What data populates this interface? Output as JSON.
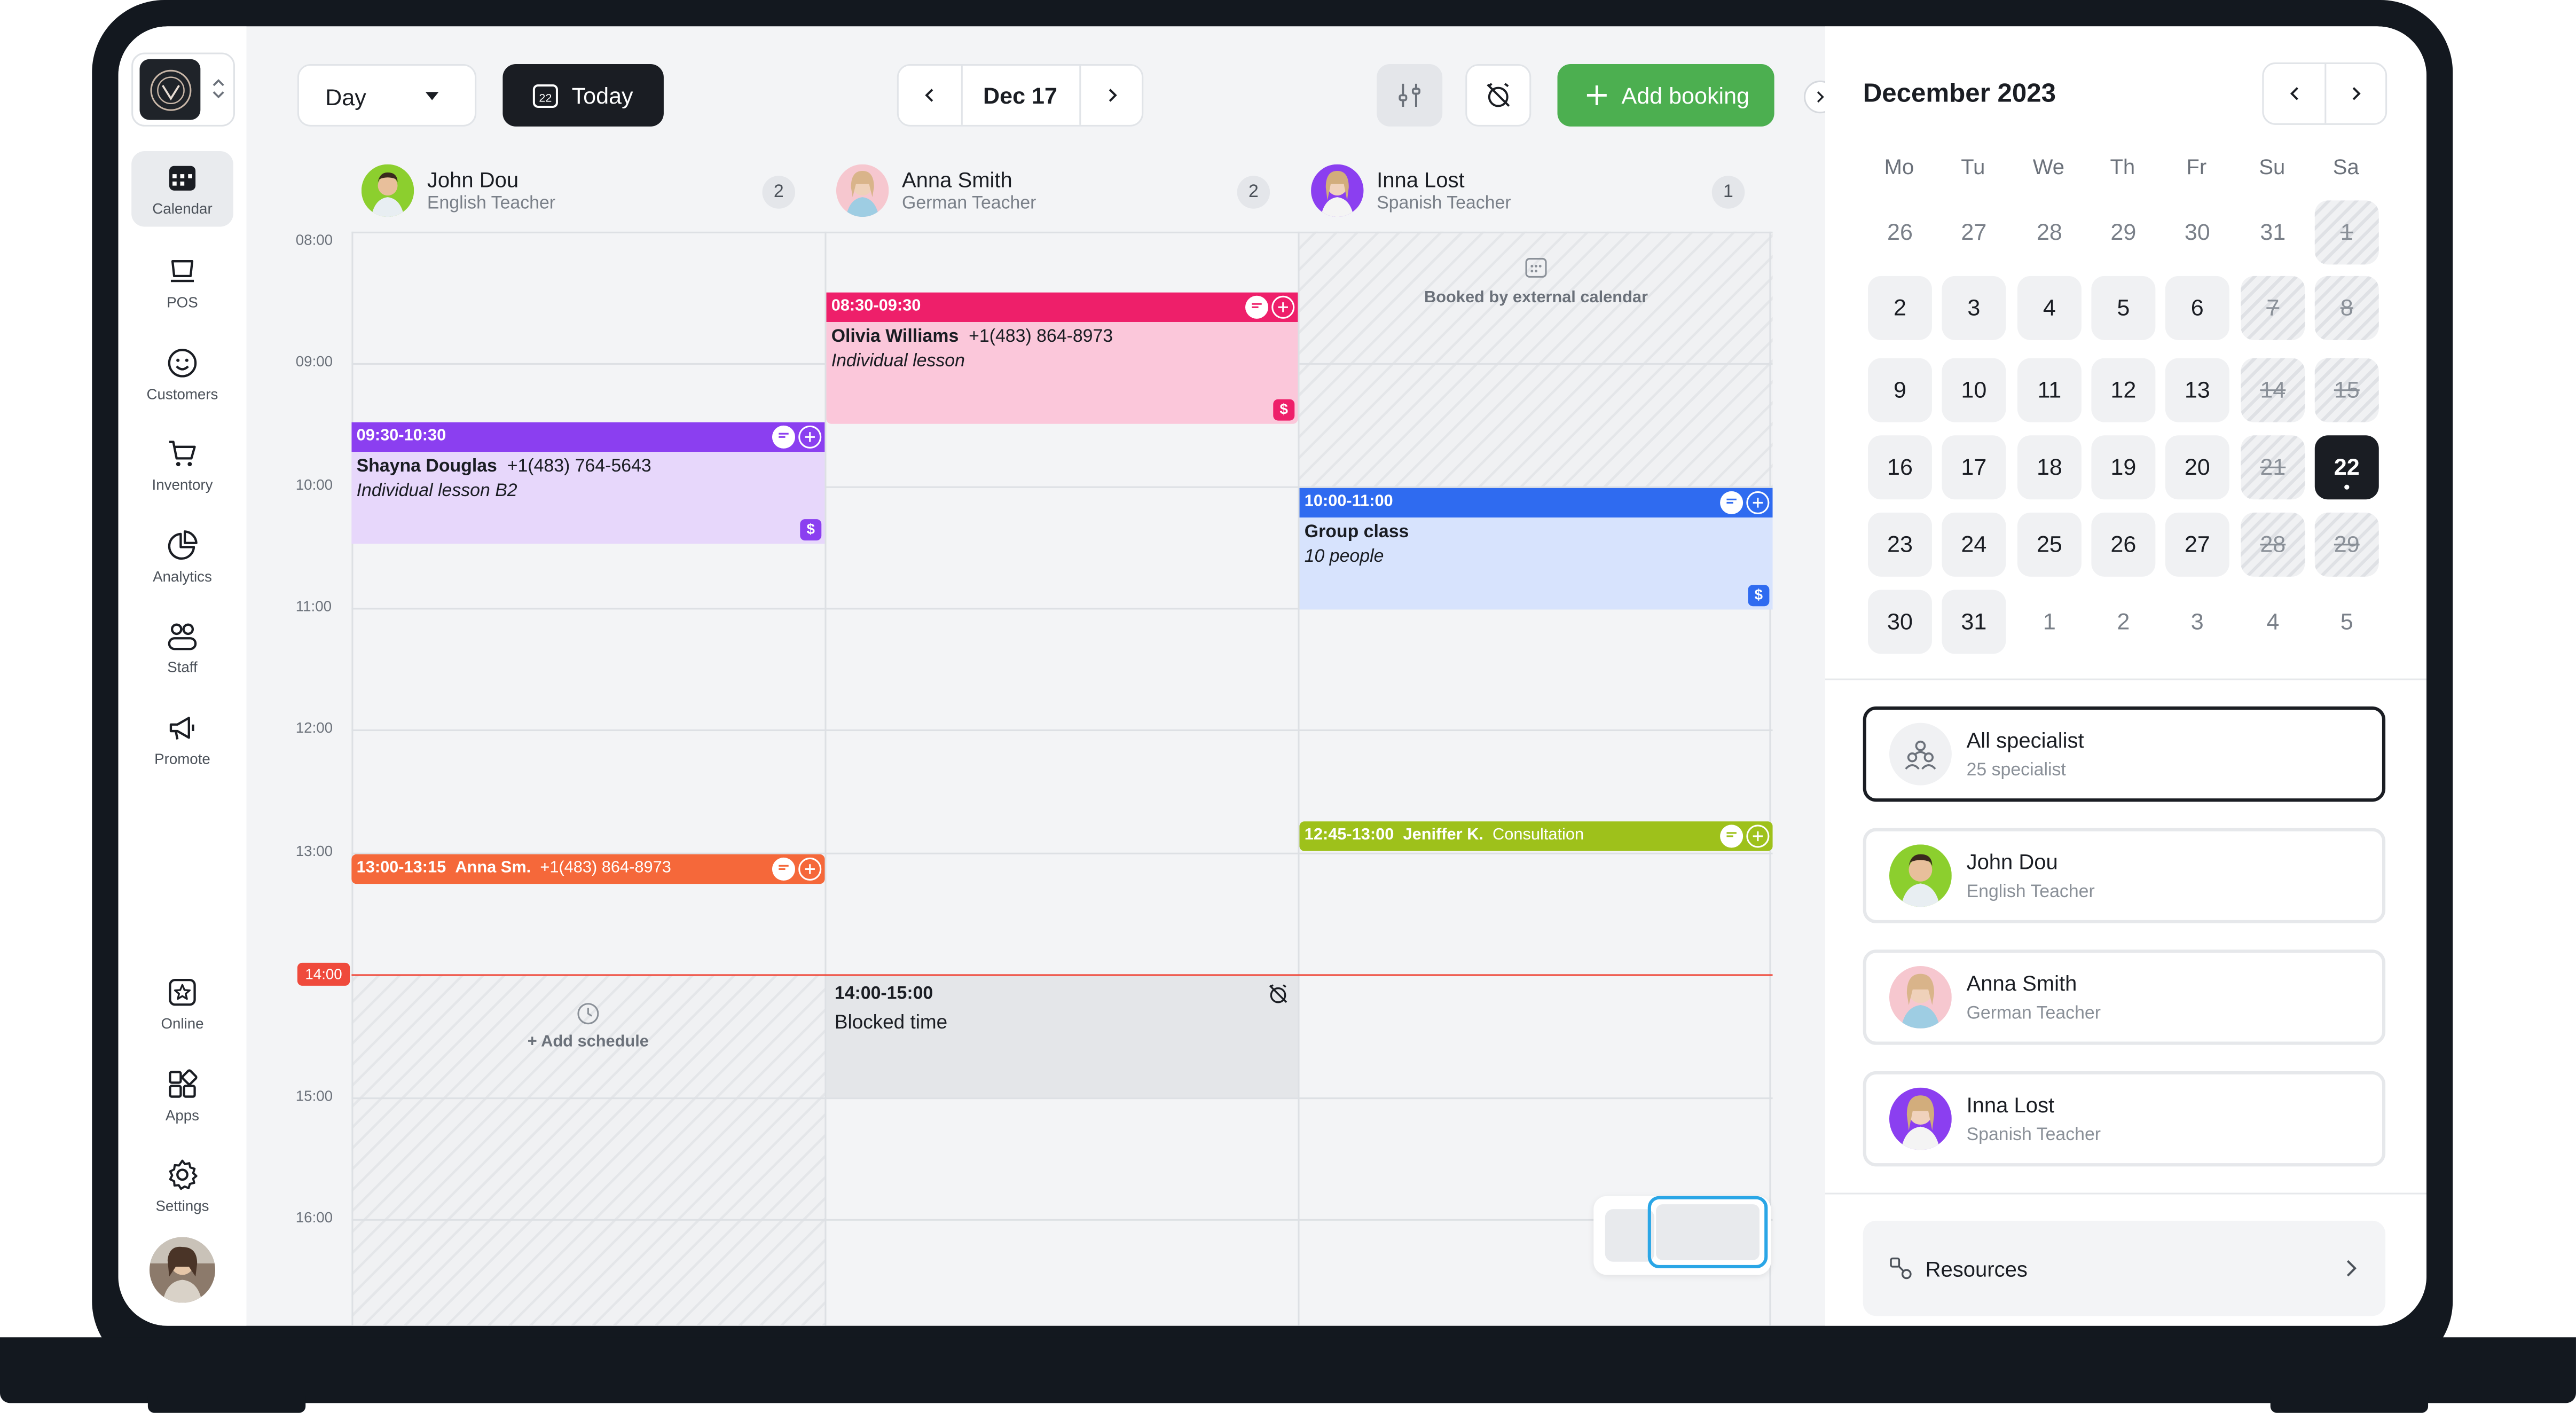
{
  "nav": {
    "items": [
      {
        "label": "Calendar"
      },
      {
        "label": "POS"
      },
      {
        "label": "Customers"
      },
      {
        "label": "Inventory"
      },
      {
        "label": "Analytics"
      },
      {
        "label": "Staff"
      },
      {
        "label": "Promote"
      },
      {
        "label": "Online"
      },
      {
        "label": "Apps"
      },
      {
        "label": "Settings"
      }
    ]
  },
  "toolbar": {
    "view_label": "Day",
    "today_label": "Today",
    "today_icon_num": "22",
    "current_date": "Dec 17",
    "add_booking_label": "Add booking"
  },
  "staff": [
    {
      "name": "John Dou",
      "role": "English Teacher",
      "count": "2"
    },
    {
      "name": "Anna Smith",
      "role": "German Teacher",
      "count": "2"
    },
    {
      "name": "Inna Lost",
      "role": "Spanish Teacher",
      "count": "1"
    }
  ],
  "times": [
    "08:00",
    "09:00",
    "10:00",
    "11:00",
    "12:00",
    "13:00",
    "14:00",
    "15:00",
    "16:00"
  ],
  "now_time": "14:00",
  "events": {
    "olivia": {
      "time": "08:30-09:30",
      "name": "Olivia Williams",
      "phone": "+1(483) 864-8973",
      "note": "Individual lesson",
      "color": "#ee1f6a",
      "bg": "#fbc7da"
    },
    "shayna": {
      "time": "09:30-10:30",
      "name": "Shayna Douglas",
      "phone": "+1(483) 764-5643",
      "note": "Individual lesson B2",
      "color": "#8b3ff0",
      "bg": "#e7d7fb"
    },
    "group": {
      "time": "10:00-11:00",
      "name": "Group class",
      "note": "10 people",
      "color": "#2f6bf0",
      "bg": "#d7e3fd"
    },
    "anna_sm": {
      "time": "13:00-13:15",
      "name": "Anna Sm.",
      "phone": "+1(483) 864-8973",
      "color": "#f5683a"
    },
    "jeniffer": {
      "time": "12:45-13:00",
      "name": "Jeniffer K.",
      "service": "Consultation",
      "color": "#9ec11b"
    },
    "blocked": {
      "time": "14:00-15:00",
      "label": "Blocked time"
    }
  },
  "external_calendar_label": "Booked by external calendar",
  "add_schedule_label": "+ Add schedule",
  "dollar_sign": "$",
  "calendar": {
    "month_label": "December 2023",
    "weekdays": [
      "Mo",
      "Tu",
      "We",
      "Th",
      "Fr",
      "Su",
      "Sa"
    ],
    "weeks": [
      [
        "26",
        "27",
        "28",
        "29",
        "30",
        "31",
        "1"
      ],
      [
        "2",
        "3",
        "4",
        "5",
        "6",
        "7",
        "8"
      ],
      [
        "9",
        "10",
        "11",
        "12",
        "13",
        "14",
        "15"
      ],
      [
        "16",
        "17",
        "18",
        "19",
        "20",
        "21",
        "22"
      ],
      [
        "23",
        "24",
        "25",
        "26",
        "27",
        "28",
        "29"
      ],
      [
        "30",
        "31",
        "1",
        "2",
        "3",
        "4",
        "5"
      ]
    ],
    "selected_day": "22"
  },
  "specialists": [
    {
      "name": "All specialist",
      "role": "25 specialist"
    },
    {
      "name": "John Dou",
      "role": "English Teacher"
    },
    {
      "name": "Anna Smith",
      "role": "German Teacher"
    },
    {
      "name": "Inna Lost",
      "role": "Spanish Teacher"
    }
  ],
  "resources_label": "Resources",
  "colors": {
    "accent_green": "#4caf50",
    "now_red": "#ef4a3c",
    "dark": "#1a1d23"
  }
}
